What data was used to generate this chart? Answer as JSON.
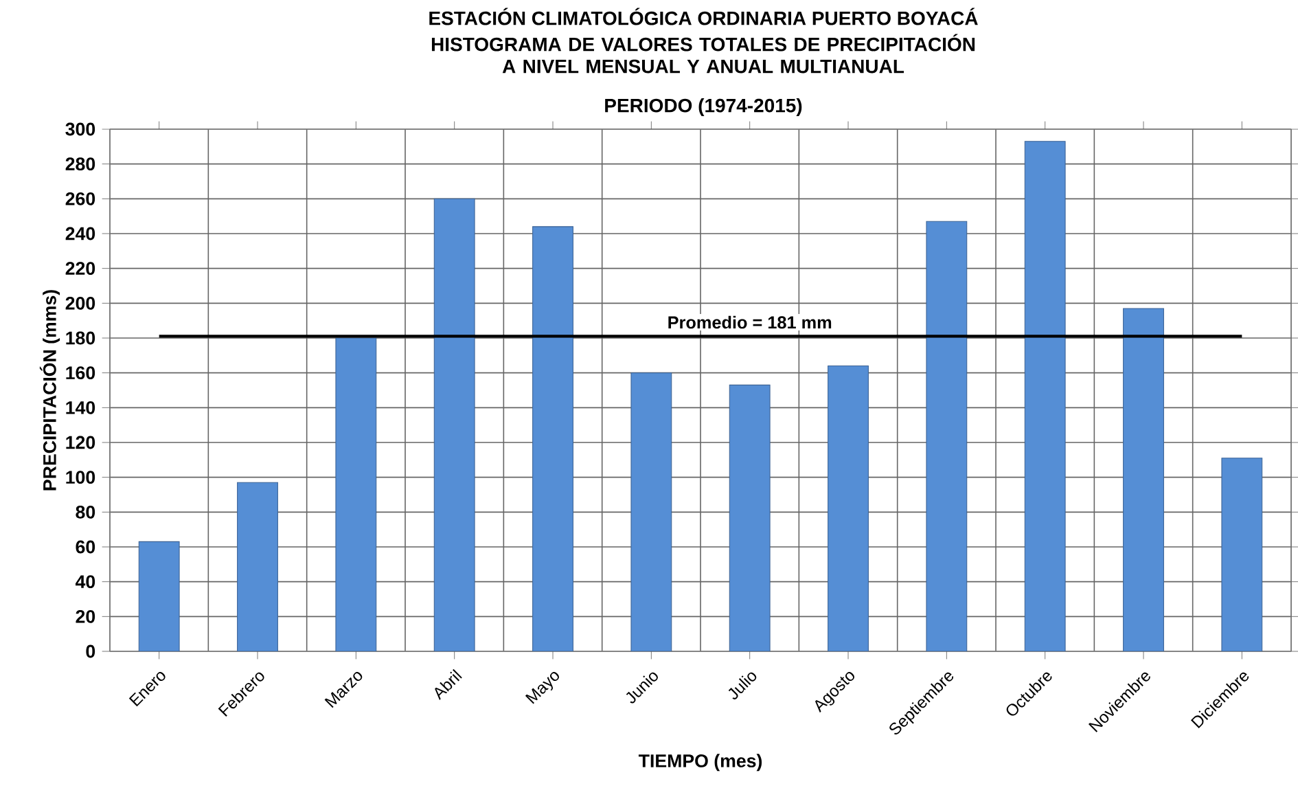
{
  "chart_data": {
    "type": "bar",
    "title": "ESTACIÓN CLIMATOLÓGICA ORDINARIA PUERTO BOYACÁ",
    "subtitle": "HISTOGRAMA DE VALORES TOTALES DE PRECIPITACIÓN A NIVEL MENSUAL Y ANUAL MULTIANUAL",
    "annotations": [
      "PERIODO (1974-2015)"
    ],
    "xlabel": "TIEMPO (mes)",
    "ylabel": "PRECIPITACIÓN   (mms)",
    "categories": [
      "Enero",
      "Febrero",
      "Marzo",
      "Abril",
      "Mayo",
      "Junio",
      "Julio",
      "Agosto",
      "Septiembre",
      "Octubre",
      "Noviembre",
      "Diciembre"
    ],
    "values": [
      63,
      97,
      180,
      260,
      244,
      160,
      153,
      164,
      247,
      293,
      197,
      111
    ],
    "color": "#558ed5",
    "ylim": [
      0,
      300
    ],
    "yticks": [
      0,
      20,
      40,
      60,
      80,
      100,
      120,
      140,
      160,
      180,
      200,
      220,
      240,
      260,
      280,
      300
    ],
    "grid": true,
    "ref_lines": [
      {
        "axis": "y",
        "value": 181,
        "label": "Promedio = 181 mm",
        "color": "#000000"
      }
    ]
  }
}
